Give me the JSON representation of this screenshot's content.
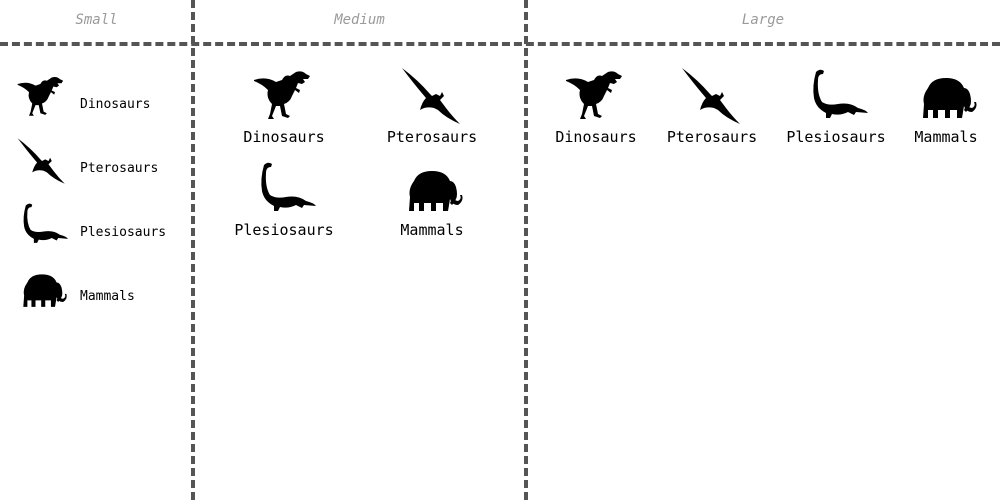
{
  "columns": {
    "small": {
      "title": "Small"
    },
    "medium": {
      "title": "Medium"
    },
    "large": {
      "title": "Large"
    }
  },
  "items": [
    {
      "label": "Dinosaurs",
      "icon": "dinosaur-icon"
    },
    {
      "label": "Pterosaurs",
      "icon": "pterosaur-icon"
    },
    {
      "label": "Plesiosaurs",
      "icon": "plesiosaur-icon"
    },
    {
      "label": "Mammals",
      "icon": "mammoth-icon"
    }
  ],
  "colors": {
    "divider": "#555555",
    "title": "#9a9a9a",
    "icon": "#000000"
  }
}
